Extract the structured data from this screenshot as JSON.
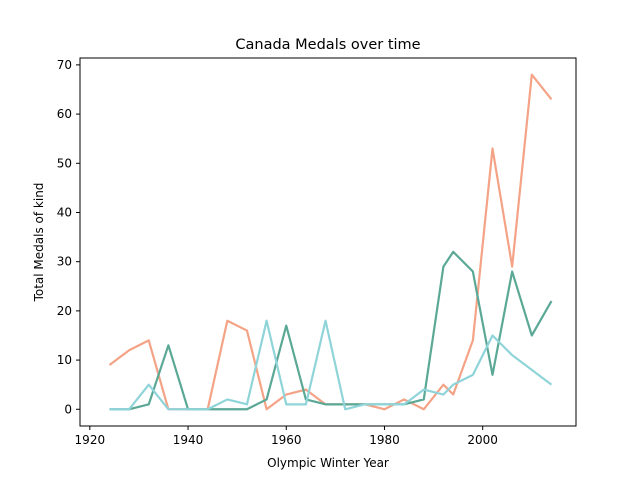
{
  "chart_data": {
    "type": "line",
    "title": "Canada Medals over time",
    "xlabel": "Olympic Winter Year",
    "ylabel": "Total Medals of kind",
    "xlim": [
      1918,
      2019
    ],
    "ylim": [
      -3.4,
      71.4
    ],
    "xticks": [
      1920,
      1940,
      1960,
      1980,
      2000
    ],
    "yticks": [
      0,
      10,
      20,
      30,
      40,
      50,
      60,
      70
    ],
    "grid": false,
    "legend": "none",
    "x": [
      1924,
      1928,
      1932,
      1936,
      1940,
      1944,
      1948,
      1952,
      1956,
      1960,
      1964,
      1968,
      1972,
      1976,
      1980,
      1984,
      1988,
      1992,
      1994,
      1998,
      2002,
      2006,
      2010,
      2014
    ],
    "series": [
      {
        "color": "#f4a386",
        "values": [
          9,
          12,
          14,
          0,
          0,
          0,
          18,
          16,
          0,
          3,
          4,
          1,
          1,
          1,
          0,
          2,
          0,
          5,
          3,
          14,
          53,
          29,
          68,
          63
        ]
      },
      {
        "color": "#5aa895",
        "values": [
          0,
          0,
          1,
          13,
          0,
          0,
          0,
          0,
          2,
          17,
          2,
          1,
          1,
          1,
          1,
          1,
          2,
          29,
          32,
          28,
          7,
          28,
          15,
          22
        ]
      },
      {
        "color": "#8fd4d9",
        "values": [
          0,
          0,
          5,
          0,
          0,
          0,
          2,
          1,
          18,
          1,
          1,
          18,
          0,
          1,
          1,
          1,
          4,
          3,
          5,
          7,
          15,
          11,
          8,
          5
        ]
      }
    ]
  }
}
